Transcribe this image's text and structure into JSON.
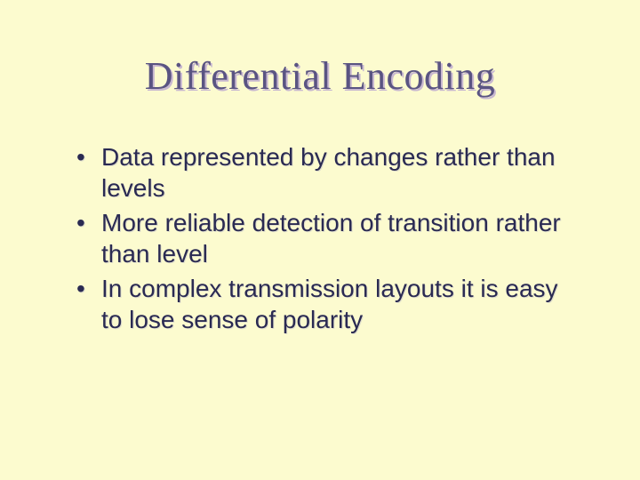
{
  "slide": {
    "title": "Differential Encoding",
    "bullets": [
      "Data represented by changes rather than levels",
      "More reliable detection of transition rather than level",
      "In complex transmission layouts it is easy to lose sense of polarity"
    ]
  },
  "style": {
    "background_color": "#fcfbcf",
    "title_font_family": "Times New Roman",
    "title_font_size_pt": 44,
    "title_color": "#5a5482",
    "title_shadow_color": "#c8b8d0",
    "bullet_font_family": "Arial",
    "bullet_font_size_pt": 28,
    "bullet_color": "#2a2a52"
  }
}
